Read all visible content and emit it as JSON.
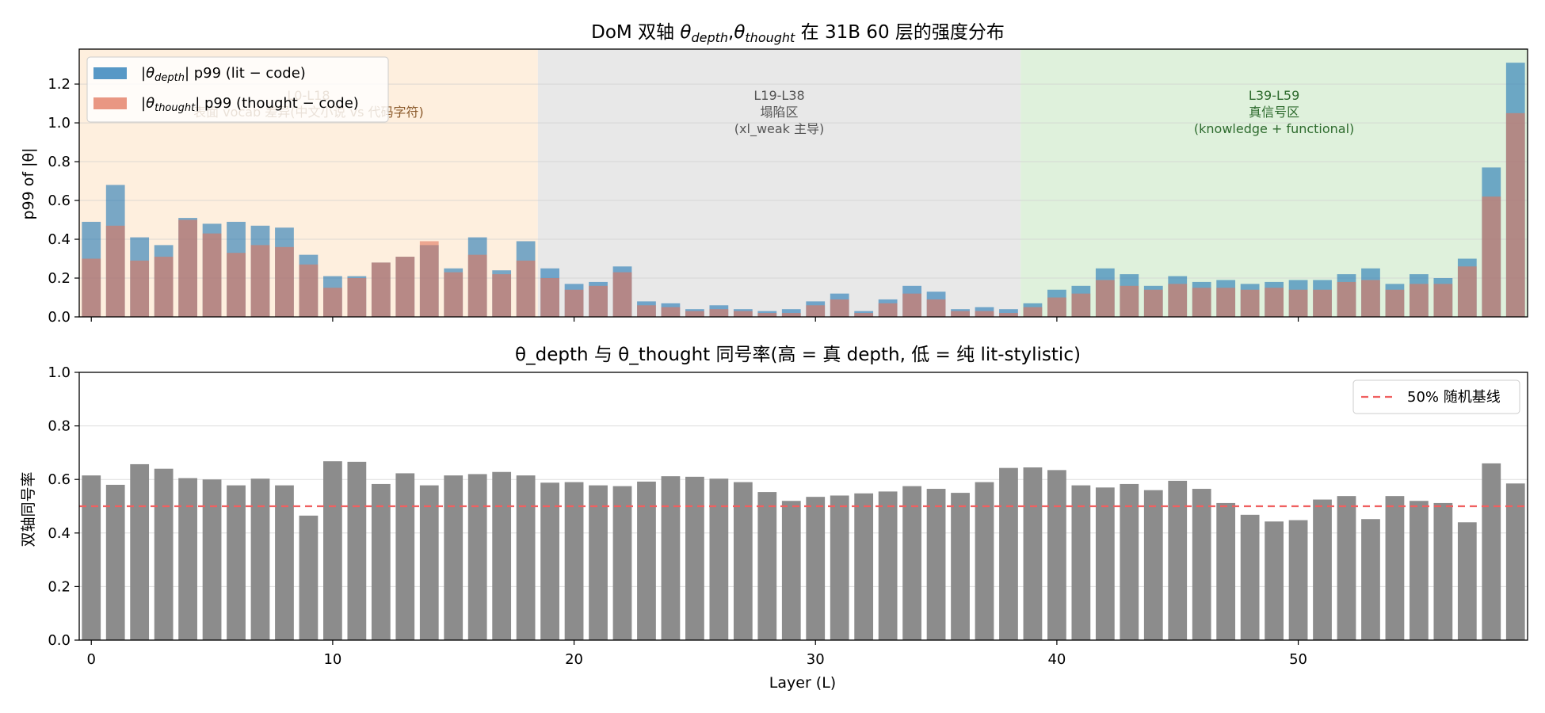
{
  "chart_data": [
    {
      "type": "bar",
      "title": "DoM 双轴 θdepth, θthought 在 31B 60 层的强度分布",
      "title_parts": {
        "prefix": "DoM 双轴 ",
        "theta1": "θ",
        "theta1_sub": "depth",
        "comma": ",",
        "theta2": "θ",
        "theta2_sub": "thought",
        "suffix": " 在 31B 60 层的强度分布"
      },
      "xlabel": "",
      "ylabel": "p99 of |θ|",
      "xlim": [
        -0.5,
        59.5
      ],
      "ylim": [
        0,
        1.38
      ],
      "xticks": [
        0,
        10,
        20,
        30,
        40,
        50
      ],
      "show_xtick_labels": false,
      "yticks": [
        0.0,
        0.2,
        0.4,
        0.6,
        0.8,
        1.0,
        1.2
      ],
      "ytick_labels": [
        "0.0",
        "0.2",
        "0.4",
        "0.6",
        "0.8",
        "1.0",
        "1.2"
      ],
      "grid": "y",
      "legend_position": "top-left",
      "x": [
        0,
        1,
        2,
        3,
        4,
        5,
        6,
        7,
        8,
        9,
        10,
        11,
        12,
        13,
        14,
        15,
        16,
        17,
        18,
        19,
        20,
        21,
        22,
        23,
        24,
        25,
        26,
        27,
        28,
        29,
        30,
        31,
        32,
        33,
        34,
        35,
        36,
        37,
        38,
        39,
        40,
        41,
        42,
        43,
        44,
        45,
        46,
        47,
        48,
        49,
        50,
        51,
        52,
        53,
        54,
        55,
        56,
        57,
        58,
        59
      ],
      "series": [
        {
          "name": "|θdepth| p99 (lit − code)",
          "legend_parts": {
            "pre": "|",
            "sym": "θ",
            "sub": "depth",
            "post": "| p99 (lit − code)"
          },
          "color": "#1f77b4",
          "values": [
            0.49,
            0.68,
            0.41,
            0.37,
            0.51,
            0.48,
            0.49,
            0.47,
            0.46,
            0.32,
            0.21,
            0.21,
            0.28,
            0.31,
            0.37,
            0.25,
            0.41,
            0.24,
            0.39,
            0.25,
            0.17,
            0.18,
            0.26,
            0.08,
            0.07,
            0.04,
            0.06,
            0.04,
            0.03,
            0.04,
            0.08,
            0.12,
            0.03,
            0.09,
            0.16,
            0.13,
            0.04,
            0.05,
            0.04,
            0.07,
            0.14,
            0.16,
            0.25,
            0.22,
            0.16,
            0.21,
            0.18,
            0.19,
            0.17,
            0.18,
            0.19,
            0.19,
            0.22,
            0.25,
            0.17,
            0.22,
            0.2,
            0.3,
            0.77,
            1.31
          ]
        },
        {
          "name": "|θthought| p99 (thought − code)",
          "legend_parts": {
            "pre": "|",
            "sym": "θ",
            "sub": "thought",
            "post": "| p99 (thought − code)"
          },
          "color": "#e1755b",
          "values": [
            0.3,
            0.47,
            0.29,
            0.31,
            0.5,
            0.43,
            0.33,
            0.37,
            0.36,
            0.27,
            0.15,
            0.2,
            0.28,
            0.31,
            0.39,
            0.23,
            0.32,
            0.22,
            0.29,
            0.2,
            0.14,
            0.16,
            0.23,
            0.06,
            0.05,
            0.03,
            0.04,
            0.03,
            0.02,
            0.02,
            0.06,
            0.09,
            0.02,
            0.07,
            0.12,
            0.09,
            0.03,
            0.03,
            0.02,
            0.05,
            0.1,
            0.12,
            0.19,
            0.16,
            0.14,
            0.17,
            0.15,
            0.15,
            0.14,
            0.15,
            0.14,
            0.14,
            0.18,
            0.19,
            0.14,
            0.17,
            0.17,
            0.26,
            0.62,
            1.05
          ]
        }
      ],
      "regions": [
        {
          "range": [
            -0.5,
            18.5
          ],
          "color": "#fde4c8",
          "text_color": "#8b5a2b",
          "lines": [
            "L0-L18",
            "表面 vocab 差异(中文小说 vs 代码字符)"
          ]
        },
        {
          "range": [
            18.5,
            38.5
          ],
          "color": "#d9d9d9",
          "text_color": "#555555",
          "lines": [
            "L19-L38",
            "塌陷区",
            "(xl_weak 主导)"
          ]
        },
        {
          "range": [
            38.5,
            59.5
          ],
          "color": "#c9e8c4",
          "text_color": "#2e6b2e",
          "lines": [
            "L39-L59",
            "真信号区",
            "(knowledge + functional)"
          ]
        }
      ]
    },
    {
      "type": "bar",
      "title": "θ_depth 与 θ_thought 同号率(高 = 真 depth, 低 = 纯 lit-stylistic)",
      "xlabel": "Layer (L)",
      "ylabel": "双轴同号率",
      "xlim": [
        -0.5,
        59.5
      ],
      "ylim": [
        0,
        1.0
      ],
      "xticks": [
        0,
        10,
        20,
        30,
        40,
        50
      ],
      "xtick_labels": [
        "0",
        "10",
        "20",
        "30",
        "40",
        "50"
      ],
      "yticks": [
        0.0,
        0.2,
        0.4,
        0.6,
        0.8,
        1.0
      ],
      "ytick_labels": [
        "0.0",
        "0.2",
        "0.4",
        "0.6",
        "0.8",
        "1.0"
      ],
      "grid": "y",
      "legend_position": "top-right",
      "baseline": {
        "name": "50% 随机基线",
        "value": 0.5,
        "color": "#f06060",
        "style": "dashed"
      },
      "x": [
        0,
        1,
        2,
        3,
        4,
        5,
        6,
        7,
        8,
        9,
        10,
        11,
        12,
        13,
        14,
        15,
        16,
        17,
        18,
        19,
        20,
        21,
        22,
        23,
        24,
        25,
        26,
        27,
        28,
        29,
        30,
        31,
        32,
        33,
        34,
        35,
        36,
        37,
        38,
        39,
        40,
        41,
        42,
        43,
        44,
        45,
        46,
        47,
        48,
        49,
        50,
        51,
        52,
        53,
        54,
        55,
        56,
        57,
        58,
        59
      ],
      "series": [
        {
          "color": "#8c8c8c",
          "values": [
            0.615,
            0.58,
            0.657,
            0.64,
            0.605,
            0.6,
            0.578,
            0.603,
            0.578,
            0.465,
            0.668,
            0.666,
            0.583,
            0.623,
            0.578,
            0.615,
            0.62,
            0.628,
            0.615,
            0.588,
            0.59,
            0.578,
            0.575,
            0.592,
            0.612,
            0.61,
            0.603,
            0.59,
            0.553,
            0.52,
            0.535,
            0.54,
            0.548,
            0.555,
            0.575,
            0.565,
            0.55,
            0.59,
            0.643,
            0.645,
            0.635,
            0.578,
            0.57,
            0.583,
            0.56,
            0.595,
            0.565,
            0.512,
            0.468,
            0.443,
            0.448,
            0.525,
            0.538,
            0.452,
            0.538,
            0.52,
            0.512,
            0.44,
            0.66,
            0.585
          ]
        }
      ]
    }
  ]
}
